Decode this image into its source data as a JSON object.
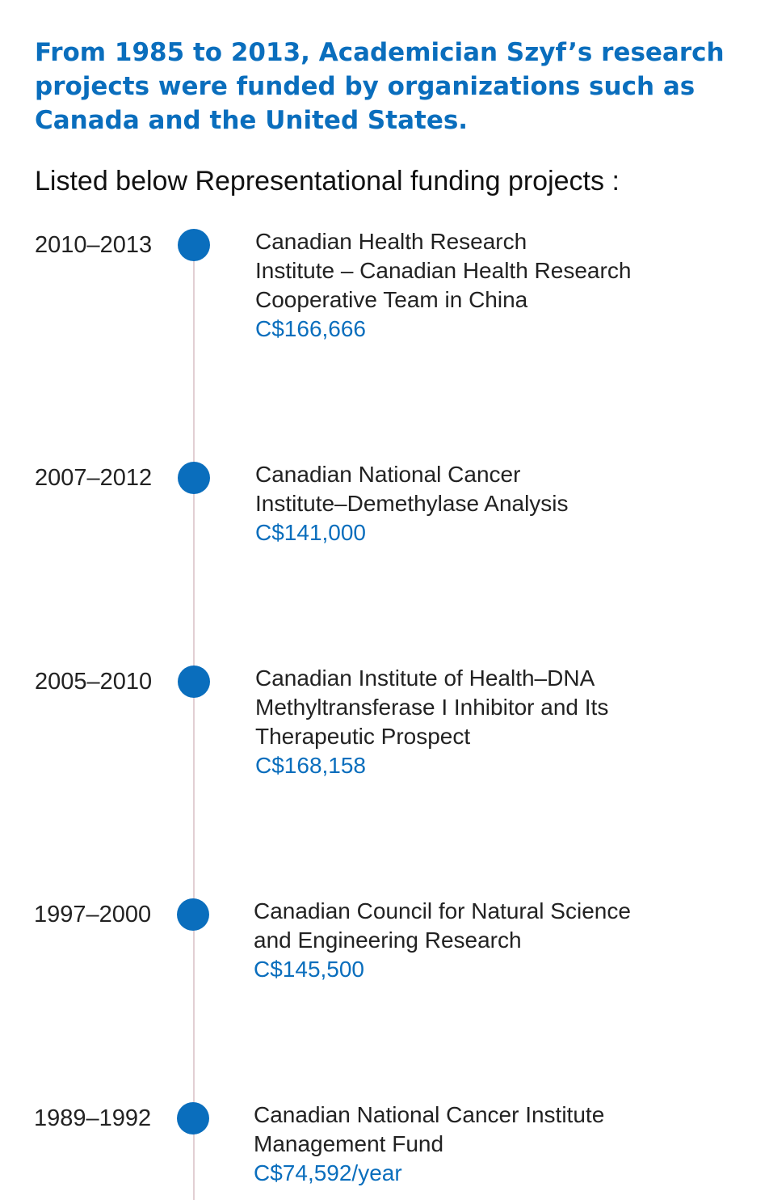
{
  "headline": "From 1985 to 2013, Academician Szyf’s research projects were funded by organizations such as Canada and the United States.",
  "subhead": "Listed below Representational funding projects :",
  "colors": {
    "accent": "#0a6ebd",
    "timeline_line": "#e2cfd3",
    "text": "#222222"
  },
  "projects": [
    {
      "years": "2010–2013",
      "organization": "Canadian Health Research\nInstitute – Canadian Health Research\nCooperative Team in China",
      "amount": "C$166,666"
    },
    {
      "years": "2007–2012",
      "organization": "Canadian National Cancer\nInstitute–Demethylase Analysis",
      "amount": "C$141,000"
    },
    {
      "years": "2005–2010",
      "organization": "Canadian Institute of Health–DNA\nMethyltransferase I Inhibitor and Its\nTherapeutic Prospect",
      "amount": "C$168,158"
    },
    {
      "years": "1997–2000",
      "organization": "Canadian Council for Natural Science\nand Engineering Research",
      "amount": "C$145,500"
    },
    {
      "years": "1989–1992",
      "organization": "Canadian National Cancer Institute\nManagement Fund",
      "amount": "C$74,592/year"
    }
  ]
}
